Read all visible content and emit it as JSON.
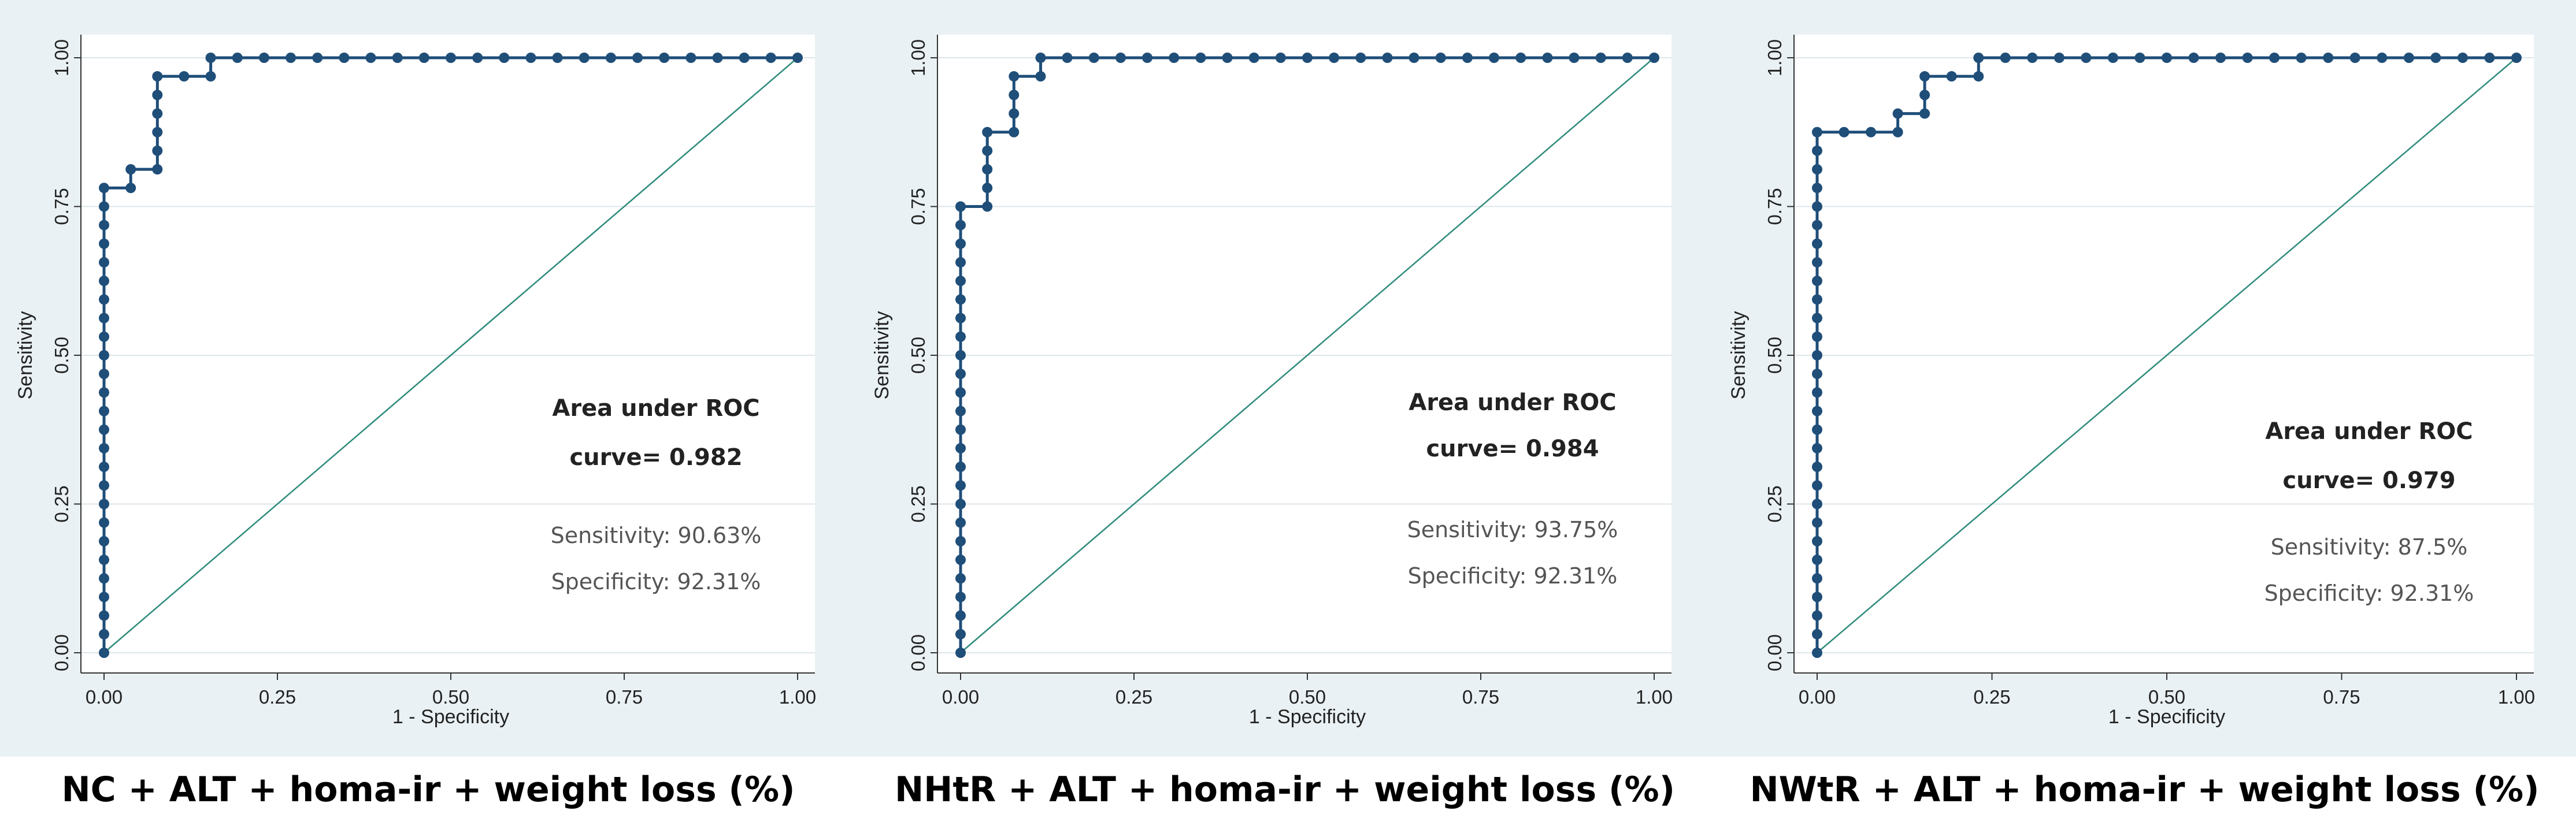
{
  "chart_data": [
    {
      "type": "line",
      "title": "NC + ALT + homa-ir + weight loss (%)",
      "xlabel": "1 - Specificity",
      "ylabel": "Sensitivity",
      "xlim": [
        0,
        1
      ],
      "ylim": [
        0,
        1
      ],
      "xticks": [
        "0.00",
        "0.25",
        "0.50",
        "0.75",
        "1.00"
      ],
      "yticks": [
        "0.00",
        "0.25",
        "0.50",
        "0.75",
        "1.00"
      ],
      "auc_line1": "Area under ROC",
      "auc_line2": "curve= 0.982",
      "sensitivity": "Sensitivity: 90.63%",
      "specificity": "Specificity: 92.31%",
      "reference_line": [
        [
          0,
          0
        ],
        [
          1,
          1
        ]
      ],
      "series": [
        {
          "name": "ROC",
          "points": [
            [
              0,
              0
            ],
            [
              0,
              0.0312
            ],
            [
              0,
              0.0625
            ],
            [
              0,
              0.0938
            ],
            [
              0,
              0.125
            ],
            [
              0,
              0.1562
            ],
            [
              0,
              0.1875
            ],
            [
              0,
              0.2188
            ],
            [
              0,
              0.25
            ],
            [
              0,
              0.2812
            ],
            [
              0,
              0.3125
            ],
            [
              0,
              0.3438
            ],
            [
              0,
              0.375
            ],
            [
              0,
              0.4062
            ],
            [
              0,
              0.4375
            ],
            [
              0,
              0.4688
            ],
            [
              0,
              0.5
            ],
            [
              0,
              0.5312
            ],
            [
              0,
              0.5625
            ],
            [
              0,
              0.5938
            ],
            [
              0,
              0.625
            ],
            [
              0,
              0.6562
            ],
            [
              0,
              0.6875
            ],
            [
              0,
              0.7188
            ],
            [
              0,
              0.75
            ],
            [
              0,
              0.7812
            ],
            [
              0.0385,
              0.7812
            ],
            [
              0.0385,
              0.8125
            ],
            [
              0.0769,
              0.8125
            ],
            [
              0.0769,
              0.8438
            ],
            [
              0.0769,
              0.875
            ],
            [
              0.0769,
              0.9062
            ],
            [
              0.0769,
              0.9375
            ],
            [
              0.0769,
              0.9688
            ],
            [
              0.1154,
              0.9688
            ],
            [
              0.1538,
              0.9688
            ],
            [
              0.1538,
              1
            ],
            [
              0.1923,
              1
            ],
            [
              0.2308,
              1
            ],
            [
              0.2692,
              1
            ],
            [
              0.3077,
              1
            ],
            [
              0.3462,
              1
            ],
            [
              0.3846,
              1
            ],
            [
              0.4231,
              1
            ],
            [
              0.4615,
              1
            ],
            [
              0.5,
              1
            ],
            [
              0.5385,
              1
            ],
            [
              0.5769,
              1
            ],
            [
              0.6154,
              1
            ],
            [
              0.6538,
              1
            ],
            [
              0.6923,
              1
            ],
            [
              0.7308,
              1
            ],
            [
              0.7692,
              1
            ],
            [
              0.8077,
              1
            ],
            [
              0.8462,
              1
            ],
            [
              0.8846,
              1
            ],
            [
              0.9231,
              1
            ],
            [
              0.9615,
              1
            ],
            [
              1,
              1
            ]
          ]
        }
      ]
    },
    {
      "type": "line",
      "title": "NHtR + ALT + homa-ir + weight loss (%)",
      "xlabel": "1 - Specificity",
      "ylabel": "Sensitivity",
      "xlim": [
        0,
        1
      ],
      "ylim": [
        0,
        1
      ],
      "xticks": [
        "0.00",
        "0.25",
        "0.50",
        "0.75",
        "1.00"
      ],
      "yticks": [
        "0.00",
        "0.25",
        "0.50",
        "0.75",
        "1.00"
      ],
      "auc_line1": "Area under ROC",
      "auc_line2": "curve= 0.984",
      "sensitivity": "Sensitivity: 93.75%",
      "specificity": "Specificity: 92.31%",
      "reference_line": [
        [
          0,
          0
        ],
        [
          1,
          1
        ]
      ],
      "series": [
        {
          "name": "ROC",
          "points": [
            [
              0,
              0
            ],
            [
              0,
              0.0312
            ],
            [
              0,
              0.0625
            ],
            [
              0,
              0.0938
            ],
            [
              0,
              0.125
            ],
            [
              0,
              0.1562
            ],
            [
              0,
              0.1875
            ],
            [
              0,
              0.2188
            ],
            [
              0,
              0.25
            ],
            [
              0,
              0.2812
            ],
            [
              0,
              0.3125
            ],
            [
              0,
              0.3438
            ],
            [
              0,
              0.375
            ],
            [
              0,
              0.4062
            ],
            [
              0,
              0.4375
            ],
            [
              0,
              0.4688
            ],
            [
              0,
              0.5
            ],
            [
              0,
              0.5312
            ],
            [
              0,
              0.5625
            ],
            [
              0,
              0.5938
            ],
            [
              0,
              0.625
            ],
            [
              0,
              0.6562
            ],
            [
              0,
              0.6875
            ],
            [
              0,
              0.7188
            ],
            [
              0,
              0.75
            ],
            [
              0.0385,
              0.75
            ],
            [
              0.0385,
              0.7812
            ],
            [
              0.0385,
              0.8125
            ],
            [
              0.0385,
              0.8438
            ],
            [
              0.0385,
              0.875
            ],
            [
              0.0769,
              0.875
            ],
            [
              0.0769,
              0.9062
            ],
            [
              0.0769,
              0.9375
            ],
            [
              0.0769,
              0.9688
            ],
            [
              0.1154,
              0.9688
            ],
            [
              0.1154,
              1
            ],
            [
              0.1538,
              1
            ],
            [
              0.1923,
              1
            ],
            [
              0.2308,
              1
            ],
            [
              0.2692,
              1
            ],
            [
              0.3077,
              1
            ],
            [
              0.3462,
              1
            ],
            [
              0.3846,
              1
            ],
            [
              0.4231,
              1
            ],
            [
              0.4615,
              1
            ],
            [
              0.5,
              1
            ],
            [
              0.5385,
              1
            ],
            [
              0.5769,
              1
            ],
            [
              0.6154,
              1
            ],
            [
              0.6538,
              1
            ],
            [
              0.6923,
              1
            ],
            [
              0.7308,
              1
            ],
            [
              0.7692,
              1
            ],
            [
              0.8077,
              1
            ],
            [
              0.8462,
              1
            ],
            [
              0.8846,
              1
            ],
            [
              0.9231,
              1
            ],
            [
              0.9615,
              1
            ],
            [
              1,
              1
            ]
          ]
        }
      ]
    },
    {
      "type": "line",
      "title": "NWtR + ALT + homa-ir + weight loss (%)",
      "xlabel": "1 - Specificity",
      "ylabel": "Sensitivity",
      "xlim": [
        0,
        1
      ],
      "ylim": [
        0,
        1
      ],
      "xticks": [
        "0.00",
        "0.25",
        "0.50",
        "0.75",
        "1.00"
      ],
      "yticks": [
        "0.00",
        "0.25",
        "0.50",
        "0.75",
        "1.00"
      ],
      "auc_line1": "Area under ROC",
      "auc_line2": "curve= 0.979",
      "sensitivity": "Sensitivity: 87.5%",
      "specificity": "Specificity: 92.31%",
      "reference_line": [
        [
          0,
          0
        ],
        [
          1,
          1
        ]
      ],
      "series": [
        {
          "name": "ROC",
          "points": [
            [
              0,
              0
            ],
            [
              0,
              0.0312
            ],
            [
              0,
              0.0625
            ],
            [
              0,
              0.0938
            ],
            [
              0,
              0.125
            ],
            [
              0,
              0.1562
            ],
            [
              0,
              0.1875
            ],
            [
              0,
              0.2188
            ],
            [
              0,
              0.25
            ],
            [
              0,
              0.2812
            ],
            [
              0,
              0.3125
            ],
            [
              0,
              0.3438
            ],
            [
              0,
              0.375
            ],
            [
              0,
              0.4062
            ],
            [
              0,
              0.4375
            ],
            [
              0,
              0.4688
            ],
            [
              0,
              0.5
            ],
            [
              0,
              0.5312
            ],
            [
              0,
              0.5625
            ],
            [
              0,
              0.5938
            ],
            [
              0,
              0.625
            ],
            [
              0,
              0.6562
            ],
            [
              0,
              0.6875
            ],
            [
              0,
              0.7188
            ],
            [
              0,
              0.75
            ],
            [
              0,
              0.7812
            ],
            [
              0,
              0.8125
            ],
            [
              0,
              0.8438
            ],
            [
              0,
              0.875
            ],
            [
              0.0385,
              0.875
            ],
            [
              0.0769,
              0.875
            ],
            [
              0.1154,
              0.875
            ],
            [
              0.1154,
              0.9062
            ],
            [
              0.1538,
              0.9062
            ],
            [
              0.1538,
              0.9375
            ],
            [
              0.1538,
              0.9688
            ],
            [
              0.1923,
              0.9688
            ],
            [
              0.2308,
              0.9688
            ],
            [
              0.2308,
              1
            ],
            [
              0.2692,
              1
            ],
            [
              0.3077,
              1
            ],
            [
              0.3462,
              1
            ],
            [
              0.3846,
              1
            ],
            [
              0.4231,
              1
            ],
            [
              0.4615,
              1
            ],
            [
              0.5,
              1
            ],
            [
              0.5385,
              1
            ],
            [
              0.5769,
              1
            ],
            [
              0.6154,
              1
            ],
            [
              0.6538,
              1
            ],
            [
              0.6923,
              1
            ],
            [
              0.7308,
              1
            ],
            [
              0.7692,
              1
            ],
            [
              0.8077,
              1
            ],
            [
              0.8462,
              1
            ],
            [
              0.8846,
              1
            ],
            [
              0.9231,
              1
            ],
            [
              0.9615,
              1
            ],
            [
              1,
              1
            ]
          ]
        }
      ]
    }
  ],
  "colors": {
    "panel_background": "#e9f1f4",
    "plot_background": "#ffffff",
    "grid": "#dde6ea",
    "roc_line": "#1f4e79",
    "roc_marker": "#1f4e79",
    "reference_line": "#2e8b7a",
    "axis": "#333333"
  }
}
